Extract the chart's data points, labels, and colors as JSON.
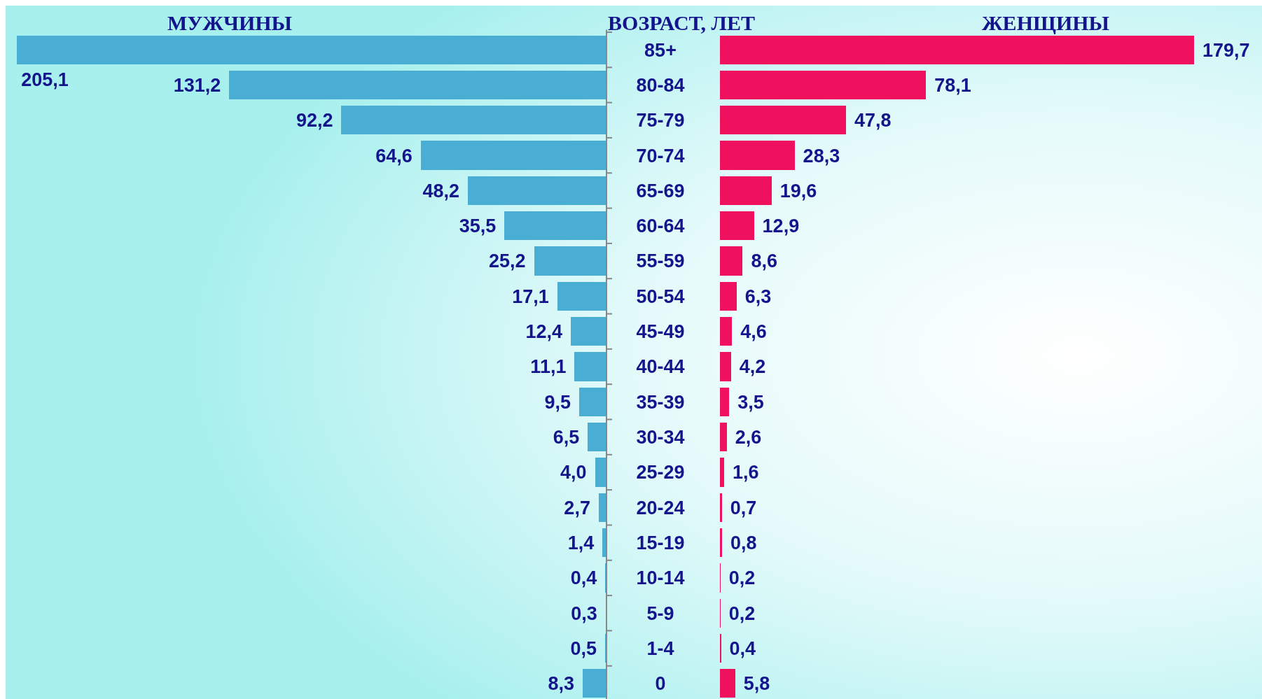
{
  "chart_data": [
    {
      "type": "bar",
      "orientation": "horizontal",
      "title": "МУЖЧИНЫ",
      "ylabel": "ВОЗРАСТ, ЛЕТ",
      "categories": [
        "85+",
        "80-84",
        "75-79",
        "70-74",
        "65-69",
        "60-64",
        "55-59",
        "50-54",
        "45-49",
        "40-44",
        "35-39",
        "30-34",
        "25-29",
        "20-24",
        "15-19",
        "10-14",
        "5-9",
        "1-4",
        "0"
      ],
      "color": "#4aaed4",
      "values": [
        205.1,
        131.2,
        92.2,
        64.6,
        48.2,
        35.5,
        25.2,
        17.1,
        12.4,
        11.1,
        9.5,
        6.5,
        4.0,
        2.7,
        1.4,
        0.4,
        0.3,
        0.5,
        8.3
      ],
      "value_labels": [
        "205,1",
        "131,2",
        "92,2",
        "64,6",
        "48,2",
        "35,5",
        "25,2",
        "17,1",
        "12,4",
        "11,1",
        "9,5",
        "6,5",
        "4,0",
        "2,7",
        "1,4",
        "0,4",
        "0,3",
        "0,5",
        "8,3"
      ]
    },
    {
      "type": "bar",
      "orientation": "horizontal",
      "title": "ЖЕНЩИНЫ",
      "categories": [
        null,
        null,
        null,
        null,
        null,
        null,
        null,
        null,
        null,
        null,
        null,
        null,
        null,
        null,
        null,
        null,
        null,
        null,
        null
      ],
      "color": "#f0115e",
      "values": [
        179.7,
        78.1,
        47.8,
        28.3,
        19.6,
        12.9,
        8.6,
        6.3,
        4.6,
        4.2,
        3.5,
        2.6,
        1.6,
        0.7,
        0.8,
        0.2,
        0.2,
        0.4,
        5.8
      ],
      "value_labels": [
        "179,7",
        "78,1",
        "47,8",
        "28,3",
        "19,6",
        "12,9",
        "8,6",
        "6,3",
        "4,6",
        "4,2",
        "3,5",
        "2,6",
        "1,6",
        "0,7",
        "0,8",
        "0,2",
        "0,2",
        "0,4",
        "5,8"
      ]
    }
  ]
}
